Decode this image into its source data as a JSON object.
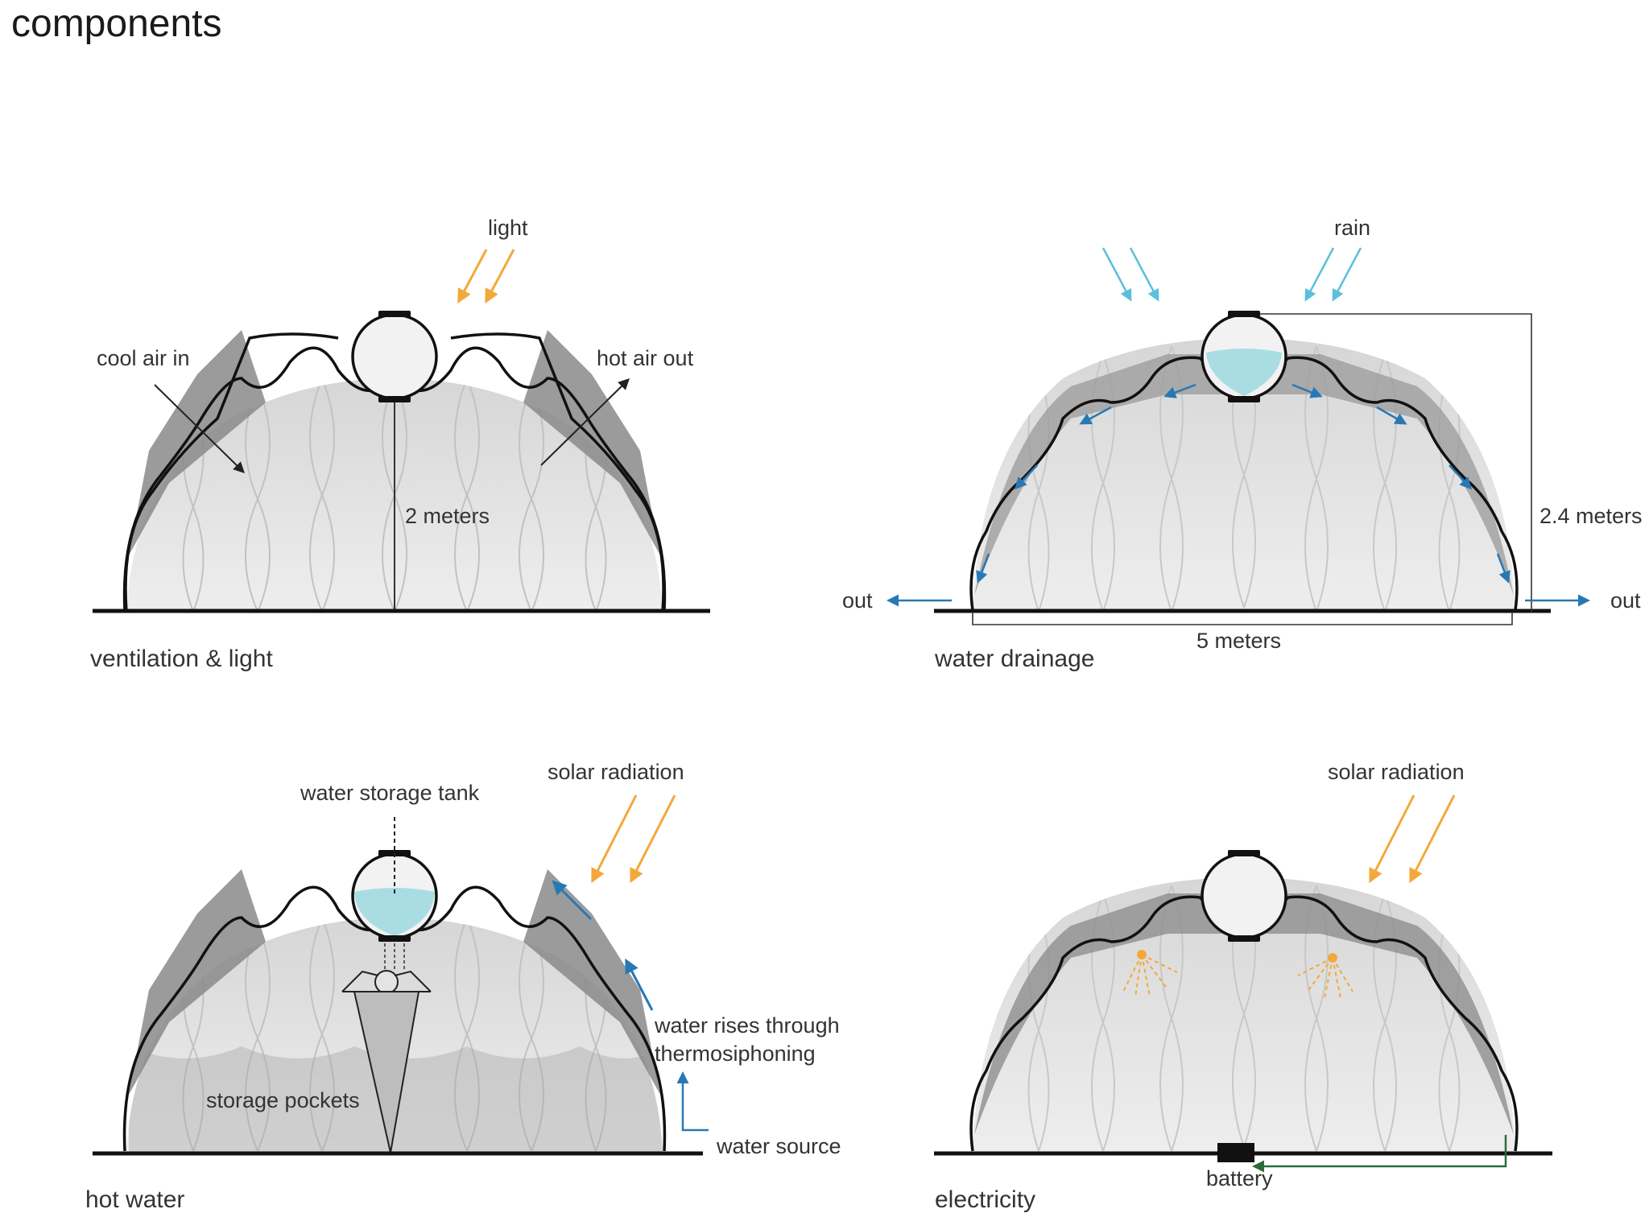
{
  "page_title": "components",
  "panels": {
    "ventilation": {
      "caption": "ventilation & light",
      "light": "light",
      "cool_air": "cool air in",
      "hot_air": "hot air out",
      "height": "2 meters"
    },
    "drainage": {
      "caption": "water drainage",
      "rain": "rain",
      "out_left": "out",
      "out_right": "out",
      "height": "2.4 meters",
      "width": "5 meters"
    },
    "hot_water": {
      "caption": "hot water",
      "tank": "water storage tank",
      "solar": "solar radiation",
      "rises_1": "water rises through",
      "rises_2": "thermosiphoning",
      "pockets": "storage pockets",
      "source": "water source"
    },
    "electricity": {
      "caption": "electricity",
      "solar": "solar radiation",
      "battery": "battery"
    }
  },
  "colors": {
    "solar": "#f2a93b",
    "rain": "#5bbfdc",
    "flow": "#2878b5",
    "water": "#a9dde3",
    "battery_wire": "#2e6b3a"
  }
}
